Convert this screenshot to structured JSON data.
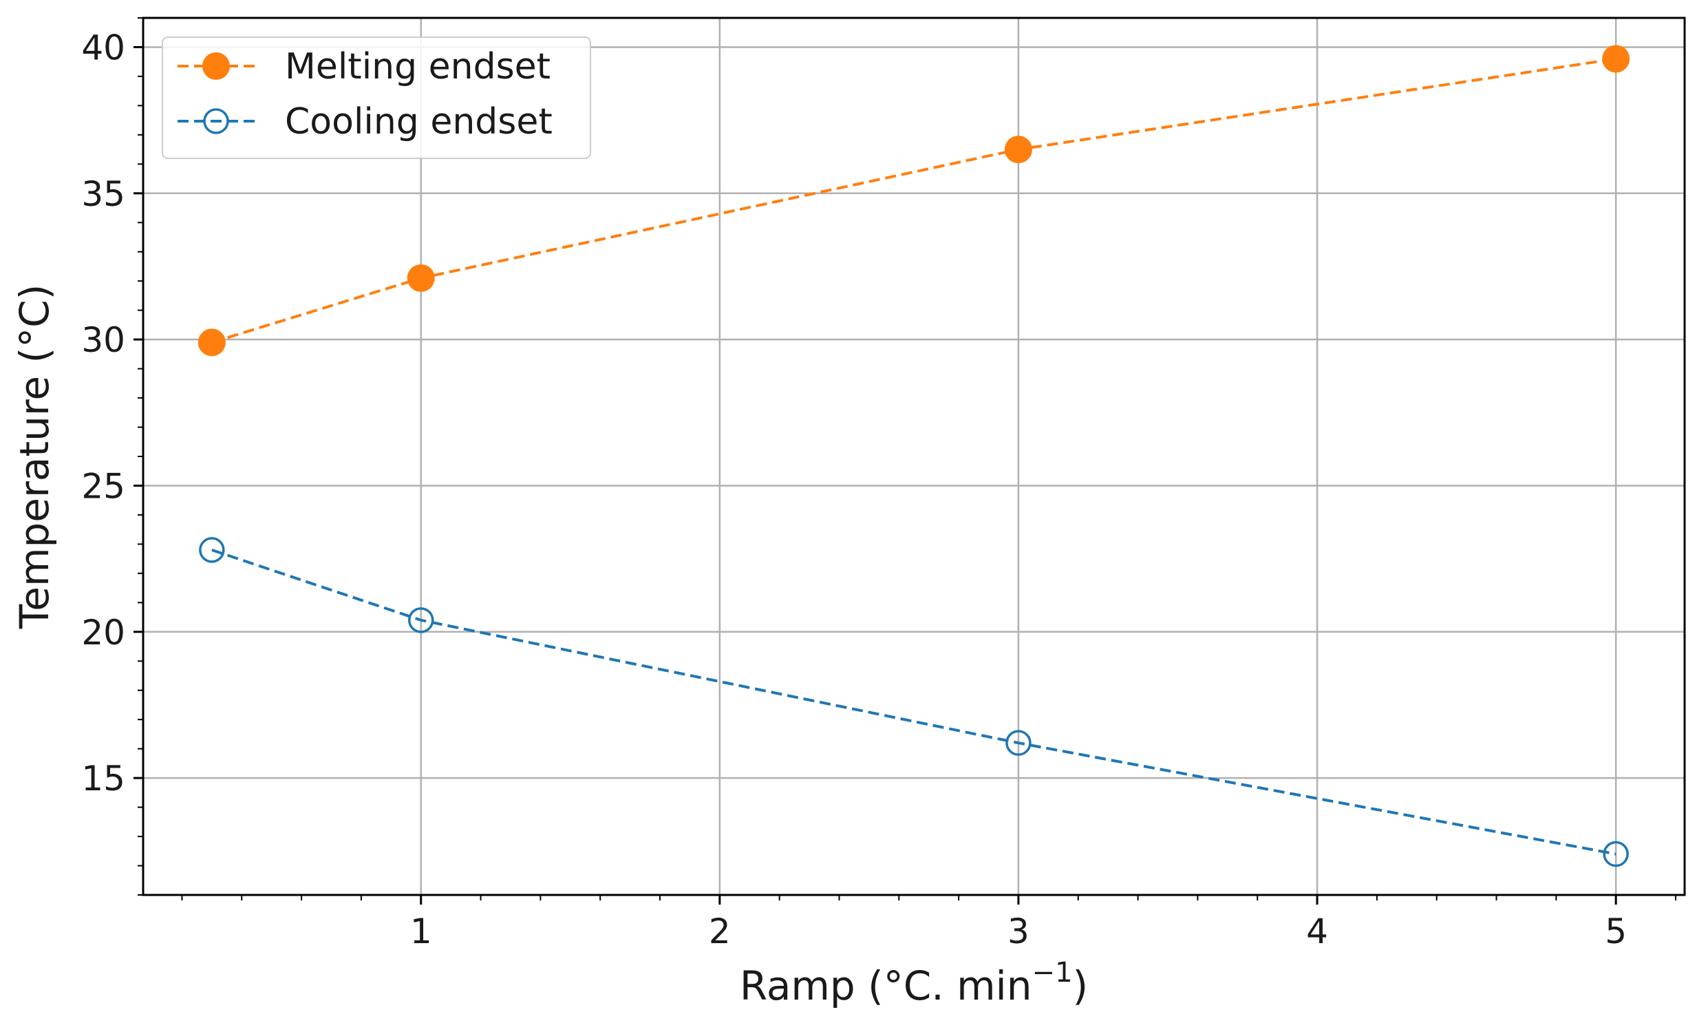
{
  "chart_data": {
    "type": "line",
    "title": "",
    "xlabel": "Ramp (°C. min",
    "xlabel_sup": "−1",
    "xlabel_close": ")",
    "ylabel": "Temperature (°C)",
    "xlim": [
      0.07,
      5.23
    ],
    "ylim": [
      11.0,
      41.0
    ],
    "x_ticks": [
      1,
      2,
      3,
      4,
      5
    ],
    "x_tick_labels": [
      "1",
      "2",
      "3",
      "4",
      "5"
    ],
    "x_minor_step": 0.2,
    "y_ticks": [
      15,
      20,
      25,
      30,
      35,
      40
    ],
    "y_tick_labels": [
      "15",
      "20",
      "25",
      "30",
      "35",
      "40"
    ],
    "y_minor_step": 1,
    "grid": true,
    "legend_position": "top-left",
    "series": [
      {
        "name": "Melting endset",
        "color": "#ff7f0e",
        "marker": "filled-circle",
        "linestyle": "dashed",
        "x": [
          0.3,
          1,
          3,
          5
        ],
        "y": [
          29.9,
          32.1,
          36.5,
          39.6
        ]
      },
      {
        "name": "Cooling endset",
        "color": "#1f77b4",
        "marker": "hollow-circle",
        "linestyle": "dashed",
        "x": [
          0.3,
          1,
          3,
          5
        ],
        "y": [
          22.8,
          20.4,
          16.2,
          12.4
        ]
      }
    ]
  }
}
